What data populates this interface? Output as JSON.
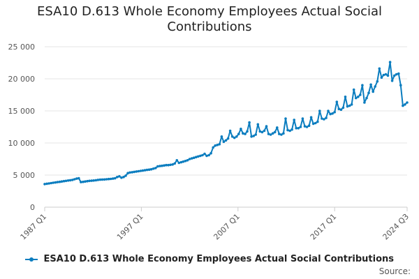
{
  "colors": {
    "series": "#0b7dbf",
    "grid": "#e6e6e6",
    "axis": "#cccccc"
  },
  "chart_data": {
    "type": "line",
    "title_lines": [
      "ESA10 D.613 Whole Economy Employees Actual Social",
      "Contributions"
    ],
    "xlabel": "",
    "ylabel": "",
    "ylim": [
      0,
      25000
    ],
    "y_ticks": [
      0,
      5000,
      10000,
      15000,
      20000,
      25000
    ],
    "y_tick_labels": [
      "0",
      "5 000",
      "10 000",
      "15 000",
      "20 000",
      "25 000"
    ],
    "x_tick_labels": [
      "1987 Q1",
      "1997 Q1",
      "2007 Q1",
      "2017 Q1",
      "2024 Q3"
    ],
    "grid": "horizontal",
    "legend_position": "bottom",
    "x_start": "1987 Q1",
    "x_end": "2024 Q3",
    "series": [
      {
        "name": "ESA10 D.613 Whole Economy Employees Actual Social Contributions",
        "values": [
          3600,
          3650,
          3700,
          3750,
          3800,
          3850,
          3900,
          3950,
          4000,
          4050,
          4100,
          4150,
          4200,
          4250,
          4350,
          4450,
          4500,
          3900,
          3950,
          4000,
          4050,
          4100,
          4120,
          4150,
          4200,
          4250,
          4280,
          4300,
          4320,
          4350,
          4380,
          4400,
          4450,
          4500,
          4700,
          4800,
          4600,
          4700,
          4900,
          5300,
          5400,
          5450,
          5500,
          5550,
          5600,
          5650,
          5700,
          5750,
          5800,
          5850,
          5900,
          6000,
          6100,
          6350,
          6400,
          6450,
          6500,
          6550,
          6550,
          6600,
          6650,
          6800,
          7300,
          6900,
          7000,
          7100,
          7200,
          7300,
          7500,
          7600,
          7700,
          7800,
          7900,
          8000,
          8100,
          8300,
          8000,
          8100,
          8400,
          9300,
          9600,
          9700,
          9800,
          11000,
          10200,
          10400,
          10700,
          11900,
          11000,
          10800,
          11000,
          11400,
          12200,
          11500,
          11400,
          11800,
          13200,
          11000,
          11100,
          11300,
          12900,
          11800,
          11700,
          11900,
          12600,
          11400,
          11300,
          11500,
          11700,
          12400,
          11400,
          11300,
          11500,
          13800,
          12000,
          11900,
          12100,
          13600,
          12300,
          12300,
          12500,
          13800,
          12600,
          12500,
          12700,
          14000,
          13000,
          13100,
          13300,
          15000,
          13800,
          13700,
          13900,
          15000,
          14500,
          14600,
          14800,
          16400,
          15300,
          15200,
          15500,
          17200,
          15700,
          15800,
          16000,
          18300,
          17000,
          17200,
          17500,
          19000,
          16300,
          17000,
          17800,
          19100,
          18000,
          18800,
          19600,
          21600,
          20200,
          20600,
          20700,
          20500,
          22600,
          19700,
          20500,
          20700,
          20800,
          19000,
          15800,
          16000,
          16300
        ]
      }
    ]
  },
  "source_label": "Source:"
}
